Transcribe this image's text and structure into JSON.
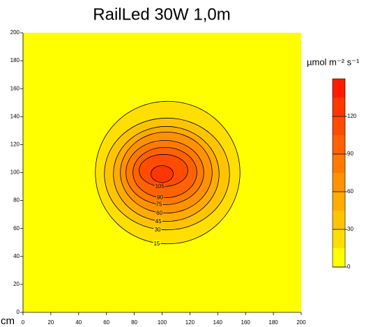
{
  "chart_data": {
    "type": "contour",
    "title": "RailLed 30W 1,0m",
    "x_label": "cm",
    "xlim": [
      0,
      200
    ],
    "xticks": [
      0,
      20,
      40,
      60,
      80,
      100,
      120,
      140,
      160,
      180,
      200
    ],
    "ylim": [
      0,
      200
    ],
    "yticks": [
      0,
      20,
      40,
      60,
      80,
      100,
      120,
      140,
      160,
      180,
      200
    ],
    "colorbar_label": "µmol m⁻² s⁻¹",
    "levels": [
      0,
      15,
      30,
      45,
      60,
      75,
      90,
      105,
      120,
      135,
      150
    ],
    "colors": [
      "#ffff00",
      "#ffdf00",
      "#ffc400",
      "#ffab00",
      "#ff9200",
      "#ff7a00",
      "#ff6200",
      "#ff4c00",
      "#ff3600",
      "#ff1a00"
    ],
    "colorbar_ticks": [
      0,
      30,
      60,
      90,
      120
    ],
    "contours": [
      {
        "level": 15,
        "cx": 104,
        "cy": 100,
        "rx": 52,
        "ry": 51
      },
      {
        "level": 30,
        "cx": 103.5,
        "cy": 99,
        "rx": 45,
        "ry": 40
      },
      {
        "level": 45,
        "cx": 103,
        "cy": 99,
        "rx": 38,
        "ry": 34
      },
      {
        "level": 60,
        "cx": 103,
        "cy": 100,
        "rx": 33,
        "ry": 29
      },
      {
        "level": 75,
        "cx": 102,
        "cy": 100,
        "rx": 28,
        "ry": 23
      },
      {
        "level": 90,
        "cx": 102,
        "cy": 100,
        "rx": 23,
        "ry": 18
      },
      {
        "level": 105,
        "cx": 101,
        "cy": 101.5,
        "rx": 17.5,
        "ry": 11.5
      },
      {
        "level": 120,
        "cx": 100,
        "cy": 99,
        "rx": 8,
        "ry": 6
      }
    ],
    "contour_labels": [
      15,
      30,
      45,
      60,
      75,
      90,
      105
    ]
  }
}
